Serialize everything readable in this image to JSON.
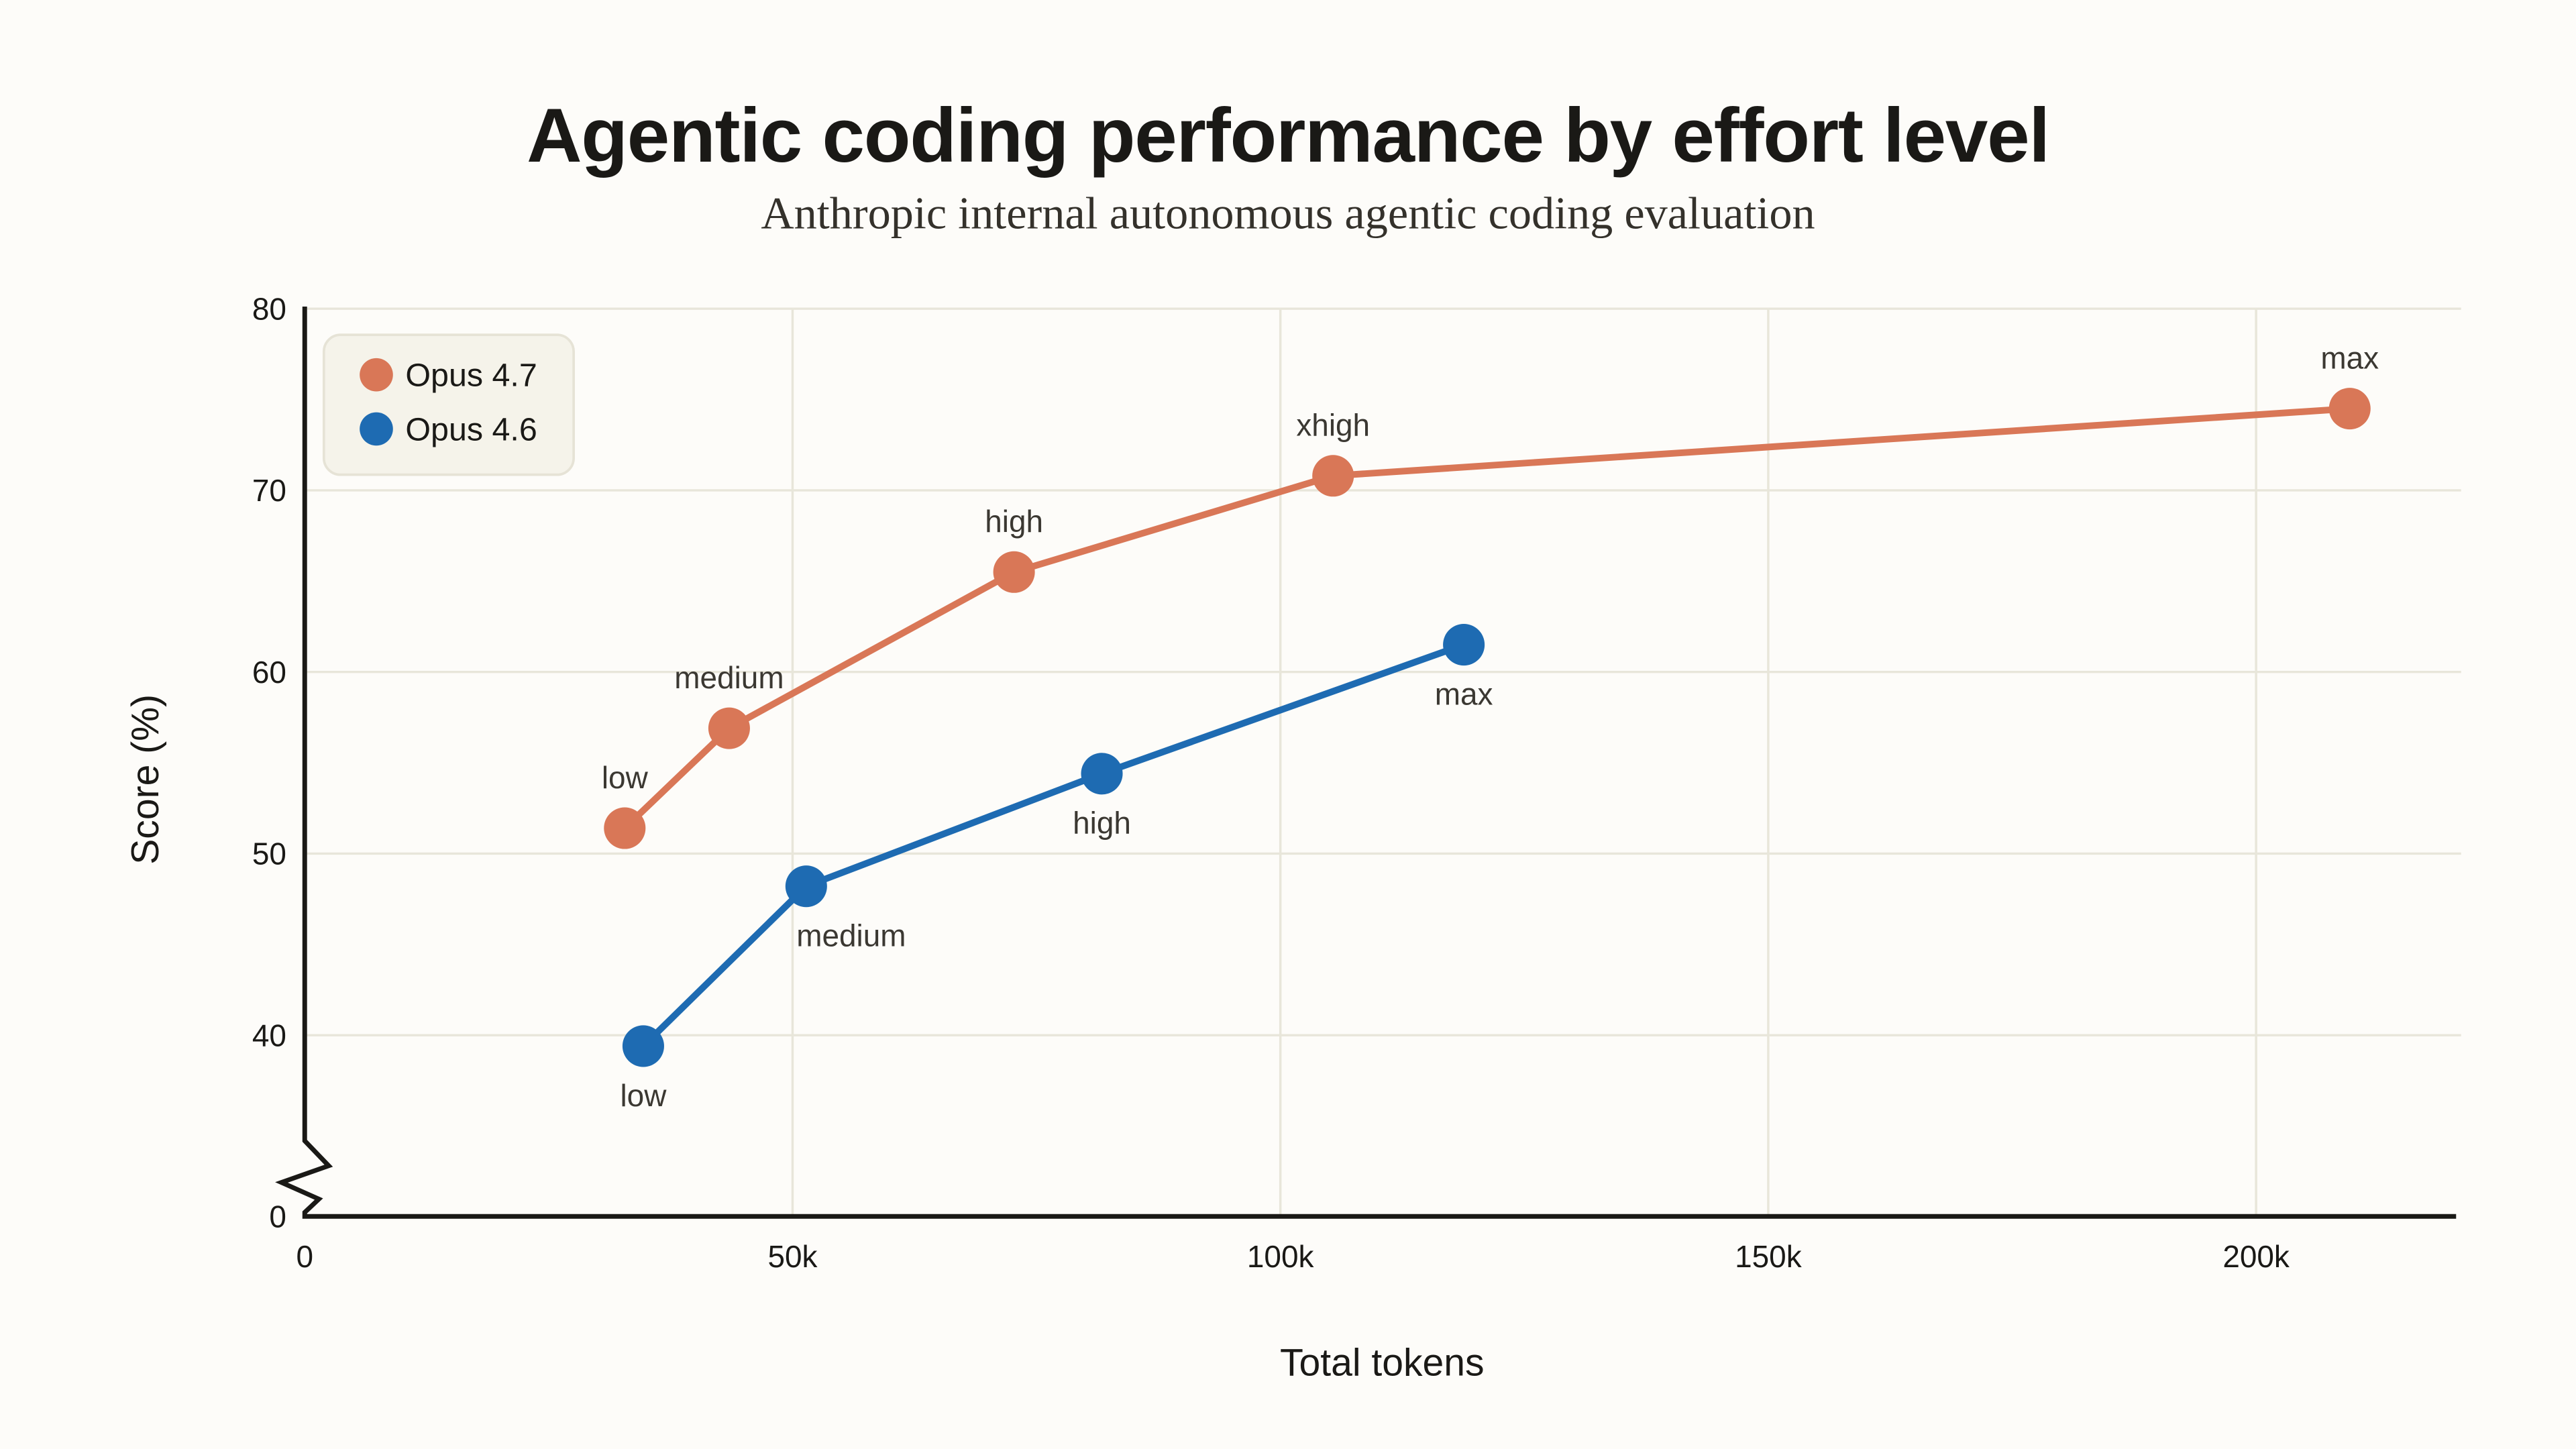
{
  "title": "Agentic coding performance by effort level",
  "subtitle": "Anthropic internal autonomous agentic coding evaluation",
  "colors": {
    "background": "#FDFCF9",
    "grid": "#E8E6DA",
    "axis": "#1A1916",
    "text": "#1A1916",
    "subtitle_text": "#34312B",
    "point_label": "#3B3832",
    "legend_fill": "#F5F3EA",
    "legend_border": "#E6E3D6",
    "opus47": "#D97757",
    "opus46": "#1E6BB2"
  },
  "chart_data": {
    "type": "line",
    "title": "Agentic coding performance by effort level",
    "subtitle": "Anthropic internal autonomous agentic coding evaluation",
    "xlabel": "Total tokens",
    "ylabel": "Score (%)",
    "x_axis": {
      "range": [
        0,
        221000
      ],
      "ticks": [
        {
          "value": 0,
          "label": "0"
        },
        {
          "value": 50000,
          "label": "50k"
        },
        {
          "value": 100000,
          "label": "100k"
        },
        {
          "value": 150000,
          "label": "150k"
        },
        {
          "value": 200000,
          "label": "200k"
        }
      ]
    },
    "y_axis": {
      "range": [
        0,
        80
      ],
      "axis_break_between": [
        0,
        40
      ],
      "gridlines_at": [
        40,
        50,
        60,
        70,
        80
      ],
      "ticks": [
        {
          "value": 0,
          "label": "0"
        },
        {
          "value": 40,
          "label": "40"
        },
        {
          "value": 50,
          "label": "50"
        },
        {
          "value": 60,
          "label": "60"
        },
        {
          "value": 70,
          "label": "70"
        },
        {
          "value": 80,
          "label": "80"
        }
      ]
    },
    "legend": {
      "position": "top-left",
      "items": [
        {
          "label": "Opus 4.7",
          "color_key": "opus47"
        },
        {
          "label": "Opus 4.6",
          "color_key": "opus46"
        }
      ]
    },
    "series": [
      {
        "name": "Opus 4.7",
        "color_key": "opus47",
        "points": [
          {
            "tokens": 32800,
            "score": 51.4,
            "effort": "low",
            "label_position": "above"
          },
          {
            "tokens": 43500,
            "score": 56.9,
            "effort": "medium",
            "label_position": "above"
          },
          {
            "tokens": 72700,
            "score": 65.5,
            "effort": "high",
            "label_position": "above"
          },
          {
            "tokens": 105400,
            "score": 70.8,
            "effort": "xhigh",
            "label_position": "above"
          },
          {
            "tokens": 209600,
            "score": 74.5,
            "effort": "max",
            "label_position": "above"
          }
        ]
      },
      {
        "name": "Opus 4.6",
        "color_key": "opus46",
        "points": [
          {
            "tokens": 34700,
            "score": 39.4,
            "effort": "low",
            "label_position": "below"
          },
          {
            "tokens": 51400,
            "score": 48.2,
            "effort": "medium",
            "label_position": "below-right"
          },
          {
            "tokens": 81700,
            "score": 54.4,
            "effort": "high",
            "label_position": "below"
          },
          {
            "tokens": 118800,
            "score": 61.5,
            "effort": "max",
            "label_position": "below"
          }
        ]
      }
    ]
  }
}
